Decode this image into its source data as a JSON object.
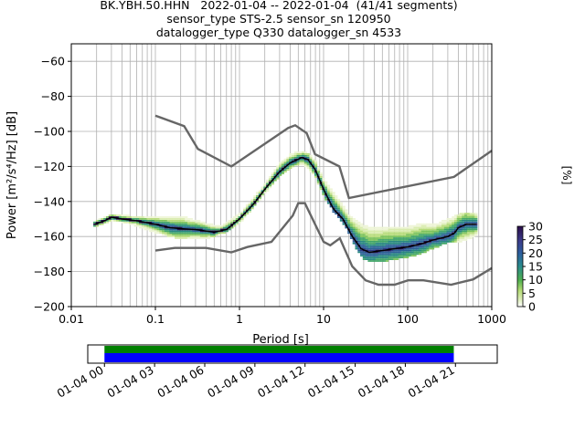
{
  "title_lines": [
    "BK.YBH.50.HHN   2022-01-04 -- 2022-01-04  (41/41 segments)",
    "sensor_type STS-2.5 sensor_sn 120950",
    "datalogger_type Q330 datalogger_sn 4533"
  ],
  "colors": {
    "noise_model": "#666666",
    "mode_line": "#000000",
    "grid": "#b0b0b0",
    "coverage_top": "#008000",
    "coverage_bottom": "#0000ff"
  },
  "chart_data": [
    {
      "type": "heatmap",
      "subtype": "probabilistic power spectral density",
      "xlabel": "Period [s]",
      "ylabel": "Power [m²/s⁴/Hz] [dB]",
      "x_scale": "log",
      "xlim": [
        0.01,
        1000
      ],
      "ylim": [
        -200,
        -50
      ],
      "x_ticks": [
        0.01,
        0.1,
        1,
        10,
        100,
        1000
      ],
      "x_tick_labels": [
        "0.01",
        "0.1",
        "1",
        "10",
        "100",
        "1000"
      ],
      "y_ticks": [
        -200,
        -180,
        -160,
        -140,
        -120,
        -100,
        -80,
        -60
      ],
      "y_tick_labels": [
        "−200",
        "−180",
        "−160",
        "−140",
        "−120",
        "−100",
        "−80",
        "−60"
      ],
      "grid": true,
      "colorbar": {
        "label": "[%]",
        "min": 0,
        "max": 30,
        "ticks": [
          0,
          5,
          10,
          15,
          20,
          25,
          30
        ],
        "colormap": "pqlx"
      },
      "mode_line": [
        [
          0.019,
          -153
        ],
        [
          0.025,
          -151
        ],
        [
          0.03,
          -149
        ],
        [
          0.04,
          -150
        ],
        [
          0.06,
          -151
        ],
        [
          0.1,
          -153
        ],
        [
          0.15,
          -155
        ],
        [
          0.2,
          -155.5
        ],
        [
          0.3,
          -156
        ],
        [
          0.5,
          -157.5
        ],
        [
          0.7,
          -156
        ],
        [
          1.0,
          -150
        ],
        [
          1.5,
          -141
        ],
        [
          2.0,
          -133
        ],
        [
          3.0,
          -123
        ],
        [
          4.0,
          -118
        ],
        [
          5.5,
          -115
        ],
        [
          6.5,
          -116
        ],
        [
          8.0,
          -122
        ],
        [
          10.0,
          -133
        ],
        [
          13.0,
          -144
        ],
        [
          17.0,
          -150
        ],
        [
          22.0,
          -160
        ],
        [
          28.0,
          -167
        ],
        [
          35.0,
          -169
        ],
        [
          50.0,
          -168
        ],
        [
          70.0,
          -167
        ],
        [
          100.0,
          -166
        ],
        [
          150.0,
          -164
        ],
        [
          200.0,
          -162
        ],
        [
          300.0,
          -160
        ],
        [
          360.0,
          -158
        ],
        [
          400.0,
          -155
        ],
        [
          500.0,
          -153
        ],
        [
          650.0,
          -153
        ]
      ],
      "nhnm": [
        [
          0.1,
          -91
        ],
        [
          0.22,
          -97
        ],
        [
          0.32,
          -110
        ],
        [
          0.8,
          -120
        ],
        [
          3.8,
          -98
        ],
        [
          4.6,
          -96.5
        ],
        [
          6.3,
          -101
        ],
        [
          7.9,
          -113
        ],
        [
          15.4,
          -120
        ],
        [
          20.0,
          -138
        ],
        [
          354.8,
          -126
        ],
        [
          1000,
          -111
        ]
      ],
      "nlnm": [
        [
          0.1,
          -168
        ],
        [
          0.17,
          -166.5
        ],
        [
          0.4,
          -166.5
        ],
        [
          0.8,
          -169
        ],
        [
          1.24,
          -166
        ],
        [
          2.4,
          -163
        ],
        [
          4.3,
          -148
        ],
        [
          5.0,
          -141
        ],
        [
          6.0,
          -141
        ],
        [
          10.0,
          -163
        ],
        [
          12.0,
          -165
        ],
        [
          15.6,
          -161
        ],
        [
          21.9,
          -177
        ],
        [
          31.6,
          -185
        ],
        [
          45.0,
          -187.5
        ],
        [
          70.0,
          -187.5
        ],
        [
          101.0,
          -185
        ],
        [
          154.0,
          -185
        ],
        [
          328.0,
          -187.5
        ],
        [
          600.0,
          -184.5
        ],
        [
          1000,
          -178
        ]
      ],
      "spread_band": [
        [
          0.03,
          -148.5,
          -149.5
        ],
        [
          0.05,
          -149,
          -152
        ],
        [
          0.1,
          -149,
          -157
        ],
        [
          0.2,
          -149,
          -161
        ],
        [
          0.4,
          -153,
          -161
        ],
        [
          0.6,
          -155,
          -158
        ],
        [
          1.0,
          -148,
          -152
        ],
        [
          2.0,
          -131,
          -135
        ],
        [
          3.0,
          -119,
          -125
        ],
        [
          4.0,
          -114,
          -121
        ],
        [
          5.0,
          -112,
          -118
        ],
        [
          6.0,
          -112,
          -119
        ],
        [
          8.0,
          -117,
          -125
        ],
        [
          10.0,
          -128,
          -136
        ],
        [
          15.0,
          -139,
          -148
        ],
        [
          20.0,
          -148,
          -157
        ],
        [
          25.0,
          -152,
          -167
        ],
        [
          30.0,
          -154,
          -172
        ],
        [
          40.0,
          -156,
          -174
        ],
        [
          60.0,
          -155,
          -173
        ],
        [
          100.0,
          -155,
          -171
        ],
        [
          150.0,
          -153,
          -169
        ],
        [
          200.0,
          -154,
          -166
        ],
        [
          300.0,
          -151,
          -163
        ],
        [
          400.0,
          -148,
          -163
        ],
        [
          650.0,
          -147,
          -159
        ]
      ]
    },
    {
      "type": "bar",
      "subtype": "data coverage timeline",
      "x_tick_labels": [
        "01-04 00",
        "01-04 03",
        "01-04 06",
        "01-04 09",
        "01-04 12",
        "01-04 15",
        "01-04 18",
        "01-04 21"
      ],
      "x_ticks_hours": [
        0,
        3,
        6,
        9,
        12,
        15,
        18,
        21
      ],
      "xlim_hours": [
        -1,
        23.5
      ],
      "bars": [
        {
          "start_hour": 0,
          "end_hour": 20.9
        },
        {
          "start_hour": 0,
          "end_hour": 20.9
        }
      ]
    }
  ]
}
